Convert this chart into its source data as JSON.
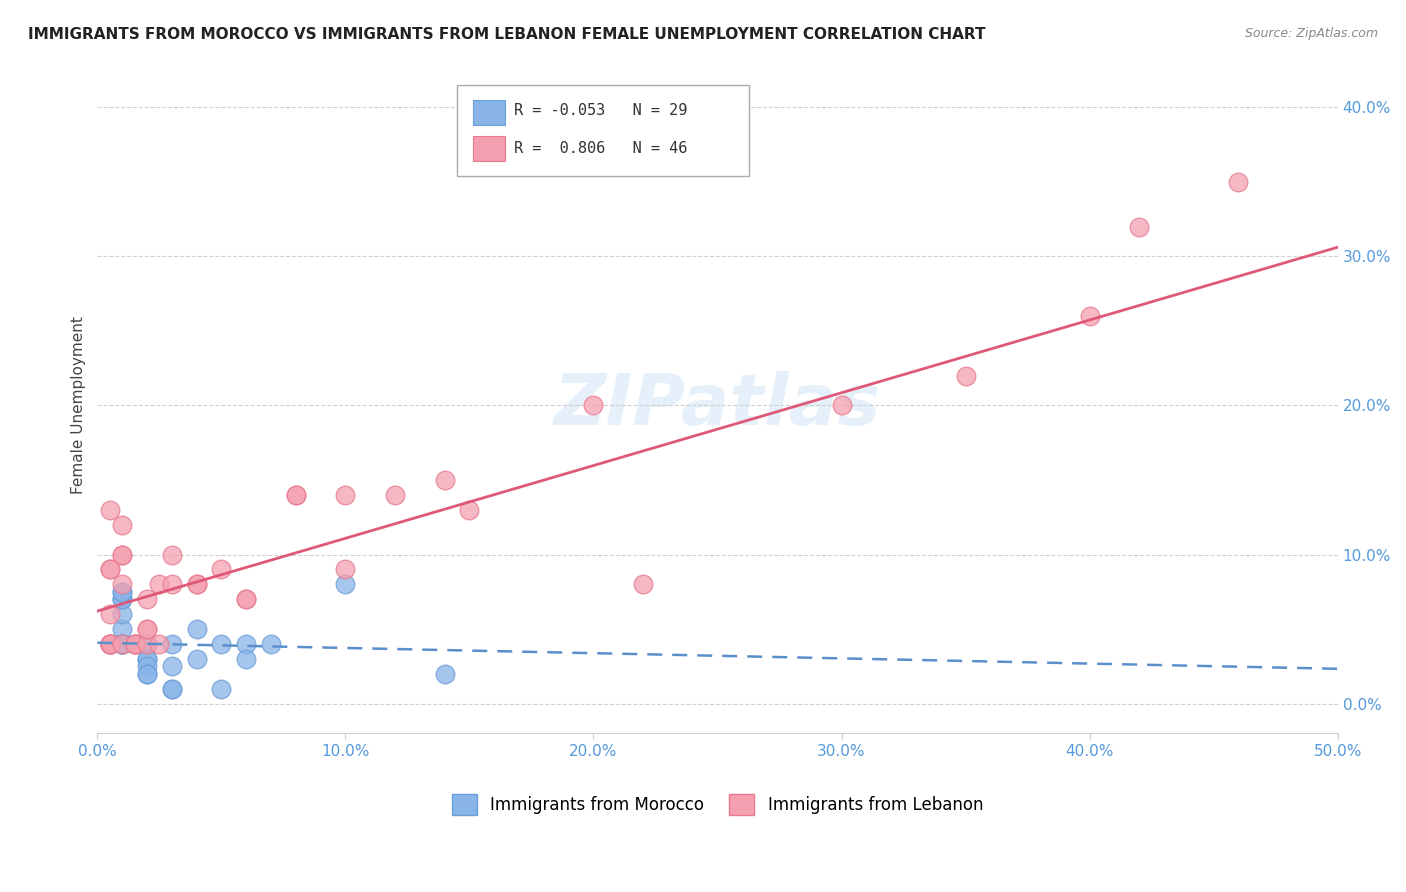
{
  "title": "IMMIGRANTS FROM MOROCCO VS IMMIGRANTS FROM LEBANON FEMALE UNEMPLOYMENT CORRELATION CHART",
  "source": "Source: ZipAtlas.com",
  "ylabel": "Female Unemployment",
  "watermark": "ZIPatlas",
  "morocco_R": -0.053,
  "morocco_N": 29,
  "lebanon_R": 0.806,
  "lebanon_N": 46,
  "xlim": [
    0.0,
    0.5
  ],
  "ylim": [
    -0.02,
    0.42
  ],
  "xticks": [
    0.0,
    0.1,
    0.2,
    0.3,
    0.4,
    0.5
  ],
  "yticks": [
    0.0,
    0.1,
    0.2,
    0.3,
    0.4
  ],
  "morocco_color": "#89b4e8",
  "lebanon_color": "#f4a0b0",
  "morocco_edge": "#6a9fd8",
  "lebanon_edge": "#e87a90",
  "trendline_morocco_color": "#5b8fcc",
  "trendline_lebanon_color": "#e05878",
  "background": "#ffffff",
  "grid_color": "#cccccc",
  "title_color": "#222222",
  "axis_color": "#5599dd",
  "morocco_x": [
    0.01,
    0.01,
    0.01,
    0.01,
    0.01,
    0.01,
    0.01,
    0.01,
    0.01,
    0.01,
    0.02,
    0.02,
    0.02,
    0.02,
    0.02,
    0.02,
    0.03,
    0.03,
    0.03,
    0.03,
    0.04,
    0.04,
    0.05,
    0.05,
    0.06,
    0.06,
    0.07,
    0.1,
    0.14
  ],
  "morocco_y": [
    0.05,
    0.06,
    0.07,
    0.07,
    0.075,
    0.075,
    0.04,
    0.04,
    0.04,
    0.04,
    0.04,
    0.03,
    0.03,
    0.025,
    0.02,
    0.02,
    0.04,
    0.025,
    0.01,
    0.01,
    0.05,
    0.03,
    0.04,
    0.01,
    0.04,
    0.03,
    0.04,
    0.08,
    0.02
  ],
  "lebanon_x": [
    0.005,
    0.005,
    0.005,
    0.005,
    0.005,
    0.005,
    0.005,
    0.005,
    0.005,
    0.005,
    0.01,
    0.01,
    0.01,
    0.01,
    0.01,
    0.015,
    0.015,
    0.015,
    0.015,
    0.02,
    0.02,
    0.02,
    0.02,
    0.025,
    0.025,
    0.03,
    0.03,
    0.04,
    0.04,
    0.05,
    0.06,
    0.06,
    0.08,
    0.08,
    0.1,
    0.1,
    0.12,
    0.14,
    0.15,
    0.2,
    0.22,
    0.3,
    0.35,
    0.4,
    0.42,
    0.46
  ],
  "lebanon_y": [
    0.04,
    0.04,
    0.04,
    0.04,
    0.04,
    0.04,
    0.06,
    0.09,
    0.09,
    0.13,
    0.04,
    0.08,
    0.1,
    0.1,
    0.12,
    0.04,
    0.04,
    0.04,
    0.04,
    0.04,
    0.05,
    0.05,
    0.07,
    0.04,
    0.08,
    0.1,
    0.08,
    0.08,
    0.08,
    0.09,
    0.07,
    0.07,
    0.14,
    0.14,
    0.09,
    0.14,
    0.14,
    0.15,
    0.13,
    0.2,
    0.08,
    0.2,
    0.22,
    0.26,
    0.32,
    0.35
  ]
}
